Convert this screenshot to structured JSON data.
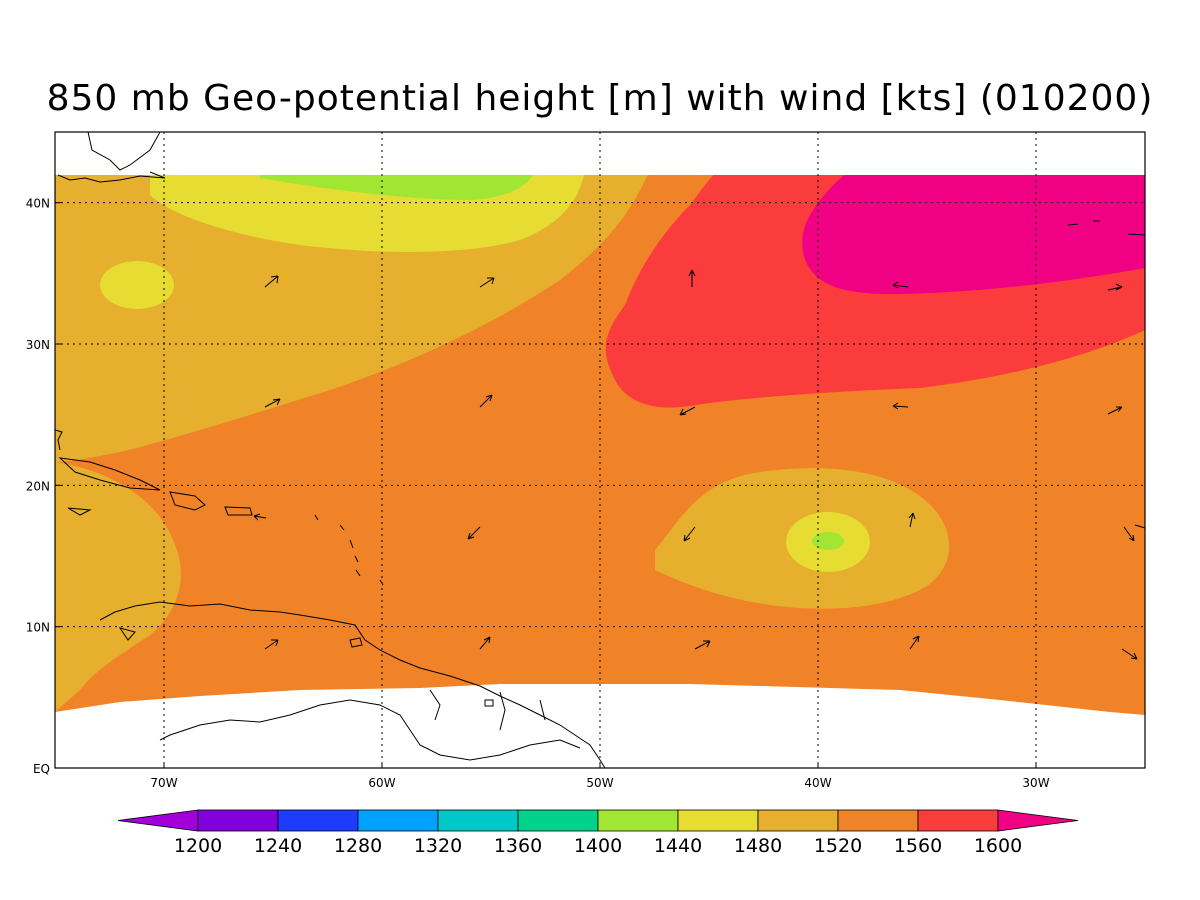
{
  "title": "850 mb Geo-potential height [m] with wind [kts] (010200)",
  "map": {
    "lon_range": [
      -75,
      -25
    ],
    "lat_range": [
      0,
      45
    ],
    "data_lat_range": [
      4,
      42
    ],
    "lon_ticks": [
      {
        "lon": -70,
        "label": "70W"
      },
      {
        "lon": -60,
        "label": "60W"
      },
      {
        "lon": -50,
        "label": "50W"
      },
      {
        "lon": -40,
        "label": "40W"
      },
      {
        "lon": -30,
        "label": "30W"
      }
    ],
    "lat_ticks": [
      {
        "lat": 0,
        "label": "EQ"
      },
      {
        "lat": 10,
        "label": "10N"
      },
      {
        "lat": 20,
        "label": "20N"
      },
      {
        "lat": 30,
        "label": "30N"
      },
      {
        "lat": 40,
        "label": "40N"
      }
    ],
    "gridlines": "dotted"
  },
  "colorbar": {
    "levels": [
      "1200",
      "1240",
      "1280",
      "1320",
      "1360",
      "1400",
      "1440",
      "1480",
      "1520",
      "1560",
      "1600"
    ],
    "colors": [
      "#a300d9",
      "#8200dc",
      "#1e3cff",
      "#00a0ff",
      "#00c8c8",
      "#00d28c",
      "#a0e632",
      "#e6dc32",
      "#e6af2d",
      "#f08228",
      "#fa3c3c",
      "#f00082"
    ]
  }
}
